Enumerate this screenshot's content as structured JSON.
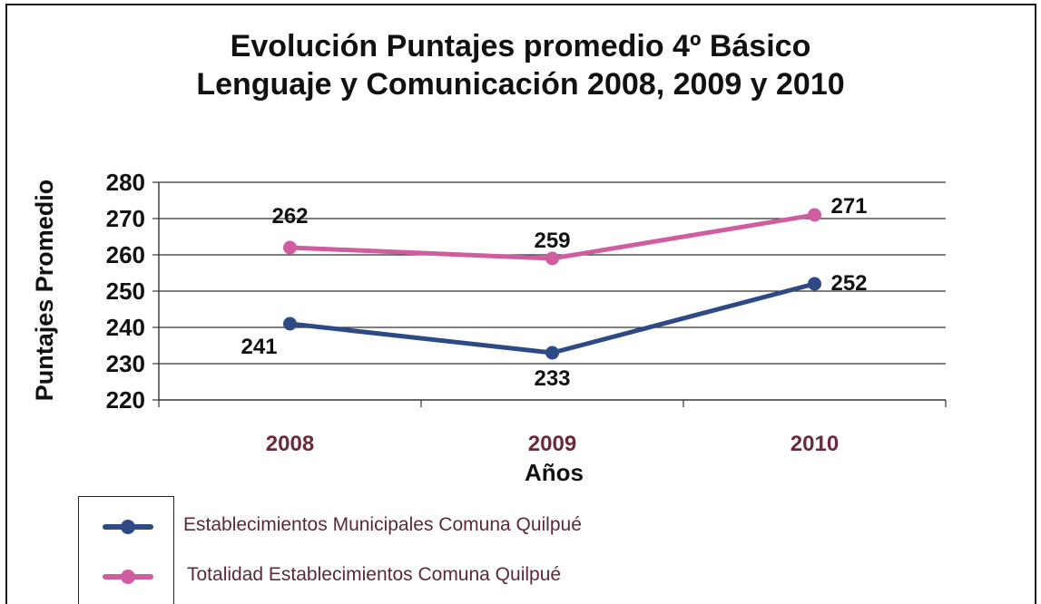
{
  "chart_data": {
    "type": "line",
    "title_lines": [
      "Evolución Puntajes promedio 4º Básico",
      "Lenguaje y Comunicación 2008, 2009 y 2010"
    ],
    "xlabel": "Años",
    "ylabel": "Puntajes Promedio",
    "categories": [
      "2008",
      "2009",
      "2010"
    ],
    "yticks": [
      "280",
      "270",
      "260",
      "250",
      "240",
      "230",
      "220"
    ],
    "ylim": [
      220,
      280
    ],
    "grid": true,
    "legend_position": "bottom-left",
    "series": [
      {
        "name": "Establecimientos Municipales Comuna Quilpué",
        "values": [
          241,
          233,
          252
        ],
        "labels": [
          "241",
          "233",
          "252"
        ],
        "color": "#2e4a86"
      },
      {
        "name": "Totalidad Establecimientos Comuna Quilpué",
        "values": [
          262,
          259,
          271
        ],
        "labels": [
          "262",
          "259",
          "271"
        ],
        "color": "#cf5da0"
      }
    ]
  }
}
